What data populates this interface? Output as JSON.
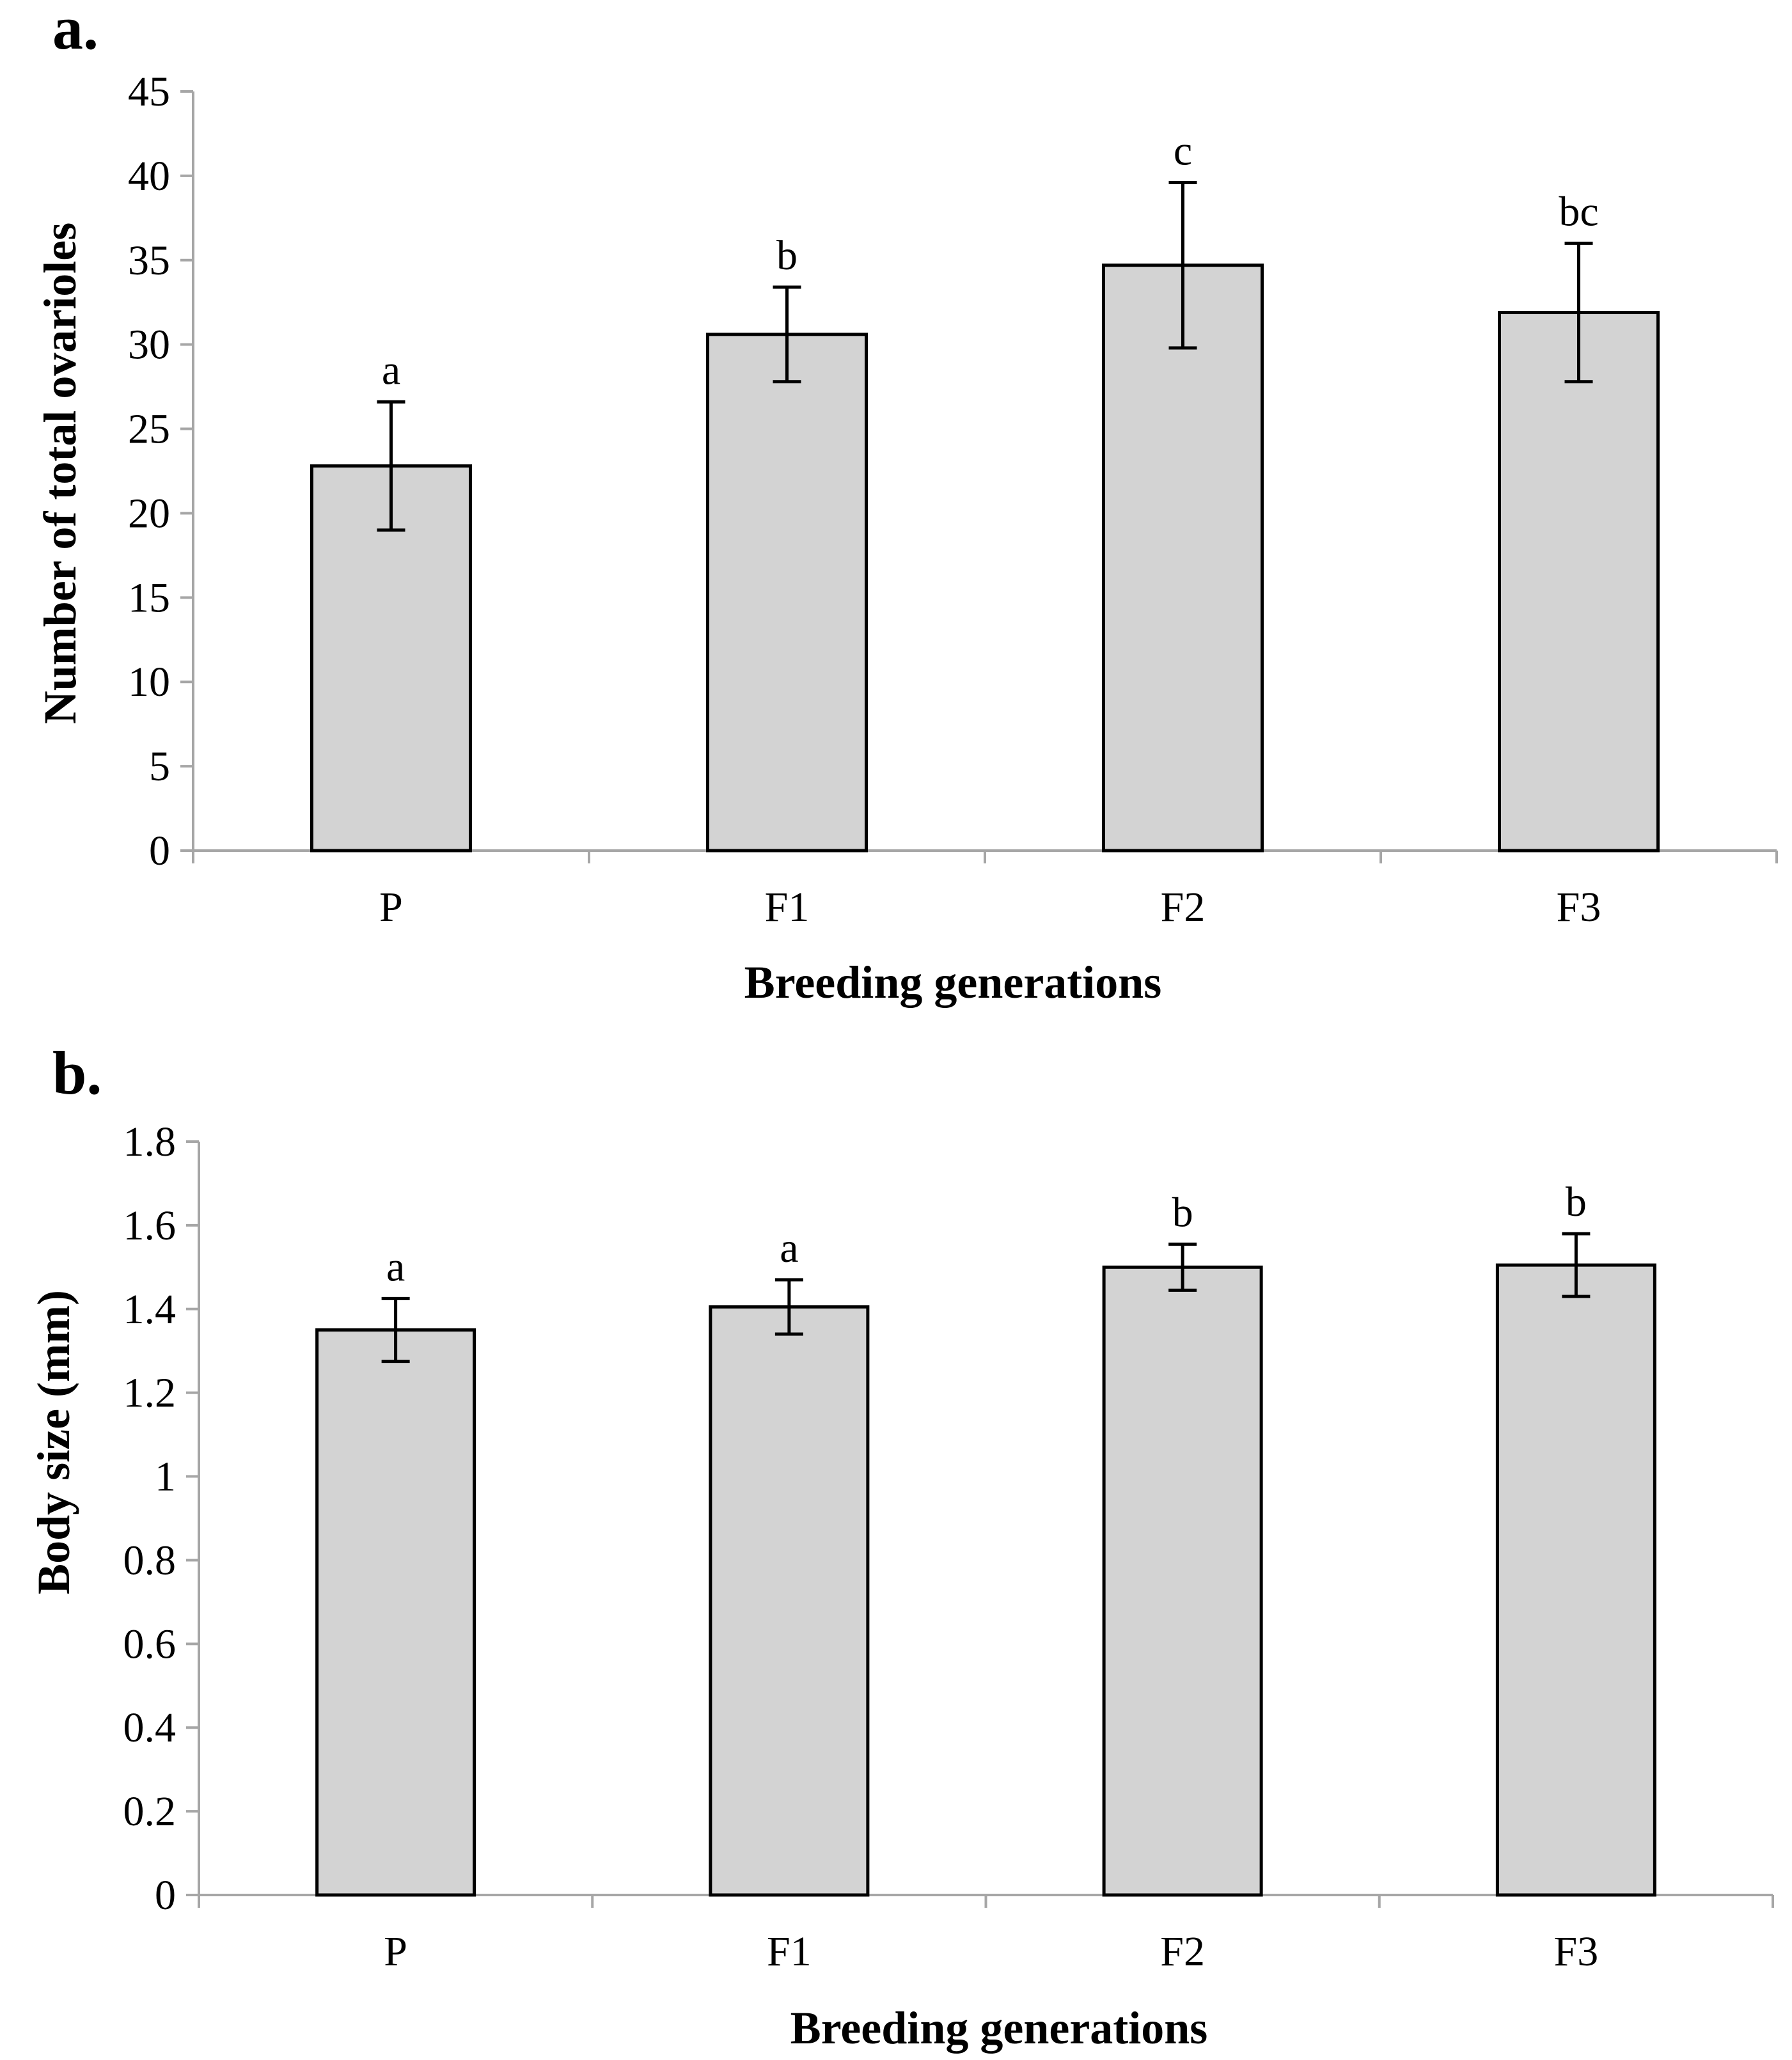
{
  "chart_data": [
    {
      "type": "bar",
      "panel_label": "a.",
      "categories": [
        "P",
        "F1",
        "F2",
        "F3"
      ],
      "values": [
        22.8,
        30.6,
        34.7,
        31.9
      ],
      "error": [
        3.8,
        2.8,
        4.9,
        4.1
      ],
      "significance": [
        "a",
        "b",
        "c",
        "bc"
      ],
      "xlabel": "Breeding generations",
      "ylabel": "Number of total ovarioles",
      "ylim": [
        0,
        45
      ],
      "yticks": [
        "0",
        "5",
        "10",
        "15",
        "20",
        "25",
        "30",
        "35",
        "40",
        "45"
      ],
      "grid": false,
      "bar_color": "#d3d3d3",
      "bar_edge_color": "#000000",
      "axis_color": "#a6a6a6"
    },
    {
      "type": "bar",
      "panel_label": "b.",
      "categories": [
        "P",
        "F1",
        "F2",
        "F3"
      ],
      "values": [
        1.35,
        1.405,
        1.5,
        1.505
      ],
      "error": [
        0.075,
        0.065,
        0.055,
        0.075
      ],
      "significance": [
        "a",
        "a",
        "b",
        "b"
      ],
      "xlabel": "Breeding generations",
      "ylabel": "Body size (mm)",
      "ylim": [
        0,
        1.8
      ],
      "yticks": [
        "0",
        "0.2",
        "0.4",
        "0.6",
        "0.8",
        "1",
        "1.2",
        "1.4",
        "1.6",
        "1.8"
      ],
      "grid": false,
      "bar_color": "#d3d3d3",
      "bar_edge_color": "#000000",
      "axis_color": "#a6a6a6"
    }
  ]
}
